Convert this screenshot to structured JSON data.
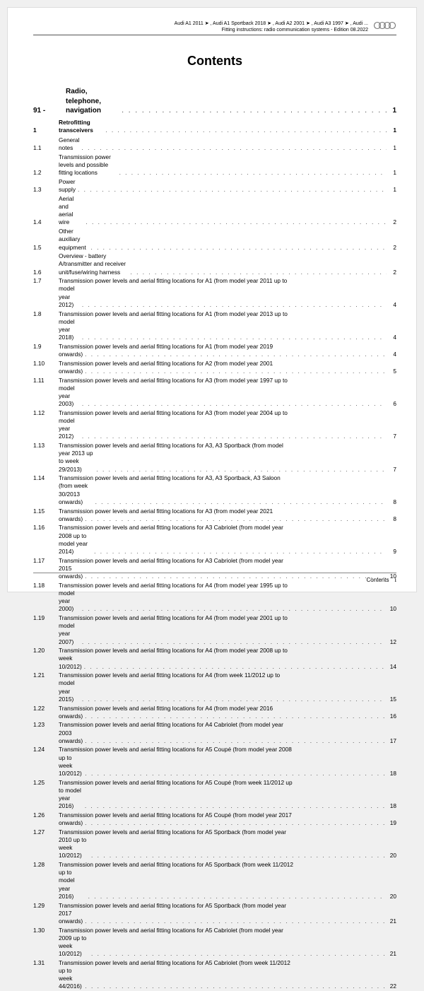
{
  "header": {
    "line1": "Audi A1 2011 ➤ , Audi A1 Sportback 2018 ➤ , Audi A2 2001 ➤ , Audi A3 1997 ➤ , Audi ...",
    "line2": "Fitting instructions: radio communication systems - Edition 08.2022"
  },
  "title": "Contents",
  "section": {
    "prefix": "91 -",
    "label": "Radio, telephone, navigation",
    "page": "1"
  },
  "subsection": {
    "num": "1",
    "label": "Retrofitting transceivers",
    "page": "1"
  },
  "entries": [
    {
      "num": "1.1",
      "label": "General notes",
      "page": "1"
    },
    {
      "num": "1.2",
      "label": "Transmission power levels and possible fitting locations",
      "page": "1"
    },
    {
      "num": "1.3",
      "label": "Power supply",
      "page": "1"
    },
    {
      "num": "1.4",
      "label": "Aerial and aerial wire",
      "page": "2"
    },
    {
      "num": "1.5",
      "label": "Other auxiliary equipment",
      "page": "2"
    },
    {
      "num": "1.6",
      "label": "Overview - battery A/transmitter and receiver unit/fuse/wiring harness",
      "page": "2"
    },
    {
      "num": "1.7",
      "line1": "Transmission power levels and aerial fitting locations for A1 (from model year 2011 up to",
      "line2": "model year 2012)",
      "page": "4"
    },
    {
      "num": "1.8",
      "line1": "Transmission power levels and aerial fitting locations for A1 (from model year 2013 up to",
      "line2": "model year 2018)",
      "page": "4"
    },
    {
      "num": "1.9",
      "line1": "Transmission power levels and aerial fitting locations for A1 (from model year 2019",
      "line2": "onwards)",
      "page": "4"
    },
    {
      "num": "1.10",
      "line1": "Transmission power levels and aerial fitting locations for A2 (from model year 2001",
      "line2": "onwards)",
      "page": "5"
    },
    {
      "num": "1.11",
      "line1": "Transmission power levels and aerial fitting locations for A3 (from model year 1997 up to",
      "line2": "model year 2003)",
      "page": "6"
    },
    {
      "num": "1.12",
      "line1": "Transmission power levels and aerial fitting locations for A3 (from model year 2004 up to",
      "line2": "model year 2012)",
      "page": "7"
    },
    {
      "num": "1.13",
      "line1": "Transmission power levels and aerial fitting locations for A3, A3 Sportback (from model",
      "line2": "year 2013 up to week 29/2013)",
      "page": "7"
    },
    {
      "num": "1.14",
      "line1": "Transmission power levels and aerial fitting locations for A3, A3 Sportback, A3 Saloon",
      "line2": "(from week 30/2013 onwards)",
      "page": "8"
    },
    {
      "num": "1.15",
      "line1": "Transmission power levels and aerial fitting locations for A3 (from model year 2021",
      "line2": "onwards)",
      "page": "8"
    },
    {
      "num": "1.16",
      "line1": "Transmission power levels and aerial fitting locations for A3 Cabriolet (from model year",
      "line2": "2008 up to model year 2014)",
      "page": "9"
    },
    {
      "num": "1.17",
      "line1": "Transmission power levels and aerial fitting locations for A3 Cabriolet (from model year",
      "line2": "2015 onwards)",
      "page": "10"
    },
    {
      "num": "1.18",
      "line1": "Transmission power levels and aerial fitting locations for A4 (from model year 1995 up to",
      "line2": "model year 2000)",
      "page": "10"
    },
    {
      "num": "1.19",
      "line1": "Transmission power levels and aerial fitting locations for A4 (from model year 2001 up to",
      "line2": "model year 2007)",
      "page": "12"
    },
    {
      "num": "1.20",
      "line1": "Transmission power levels and aerial fitting locations for A4 (from model year 2008 up to",
      "line2": "week 10/2012)",
      "page": "14"
    },
    {
      "num": "1.21",
      "line1": "Transmission power levels and aerial fitting locations for A4 (from week 11/2012 up to",
      "line2": "model year 2015)",
      "page": "15"
    },
    {
      "num": "1.22",
      "line1": "Transmission power levels and aerial fitting locations for A4 (from model year 2016",
      "line2": "onwards)",
      "page": "16"
    },
    {
      "num": "1.23",
      "line1": "Transmission power levels and aerial fitting locations for A4 Cabriolet (from model year",
      "line2": "2003 onwards)",
      "page": "17"
    },
    {
      "num": "1.24",
      "line1": "Transmission power levels and aerial fitting locations for A5 Coupé (from model year 2008",
      "line2": "up to week 10/2012)",
      "page": "18"
    },
    {
      "num": "1.25",
      "line1": "Transmission power levels and aerial fitting locations for A5 Coupé (from week 11/2012 up",
      "line2": "to model year 2016)",
      "page": "18"
    },
    {
      "num": "1.26",
      "line1": "Transmission power levels and aerial fitting locations for A5 Coupé (from model year 2017",
      "line2": "onwards)",
      "page": "19"
    },
    {
      "num": "1.27",
      "line1": "Transmission power levels and aerial fitting locations for A5 Sportback (from model year",
      "line2": "2010 up to week 10/2012)",
      "page": "20"
    },
    {
      "num": "1.28",
      "line1": "Transmission power levels and aerial fitting locations for A5 Sportback (from week 11/2012",
      "line2": "up to model year 2016)",
      "page": "20"
    },
    {
      "num": "1.29",
      "line1": "Transmission power levels and aerial fitting locations for A5 Sportback (from model year",
      "line2": "2017 onwards)",
      "page": "21"
    },
    {
      "num": "1.30",
      "line1": "Transmission power levels and aerial fitting locations for A5 Cabriolet (from model year",
      "line2": "2009 up to week 10/2012)",
      "page": "21"
    },
    {
      "num": "1.31",
      "line1": "Transmission power levels and aerial fitting locations for A5 Cabriolet (from week 11/2012",
      "line2": "up to week 44/2016)",
      "page": "22"
    }
  ],
  "footer": {
    "label": "Contents",
    "page": "i"
  },
  "colors": {
    "background": "#ffffff",
    "text": "#000000",
    "border": "#555555",
    "page_wrap": "#f0f0f0"
  }
}
